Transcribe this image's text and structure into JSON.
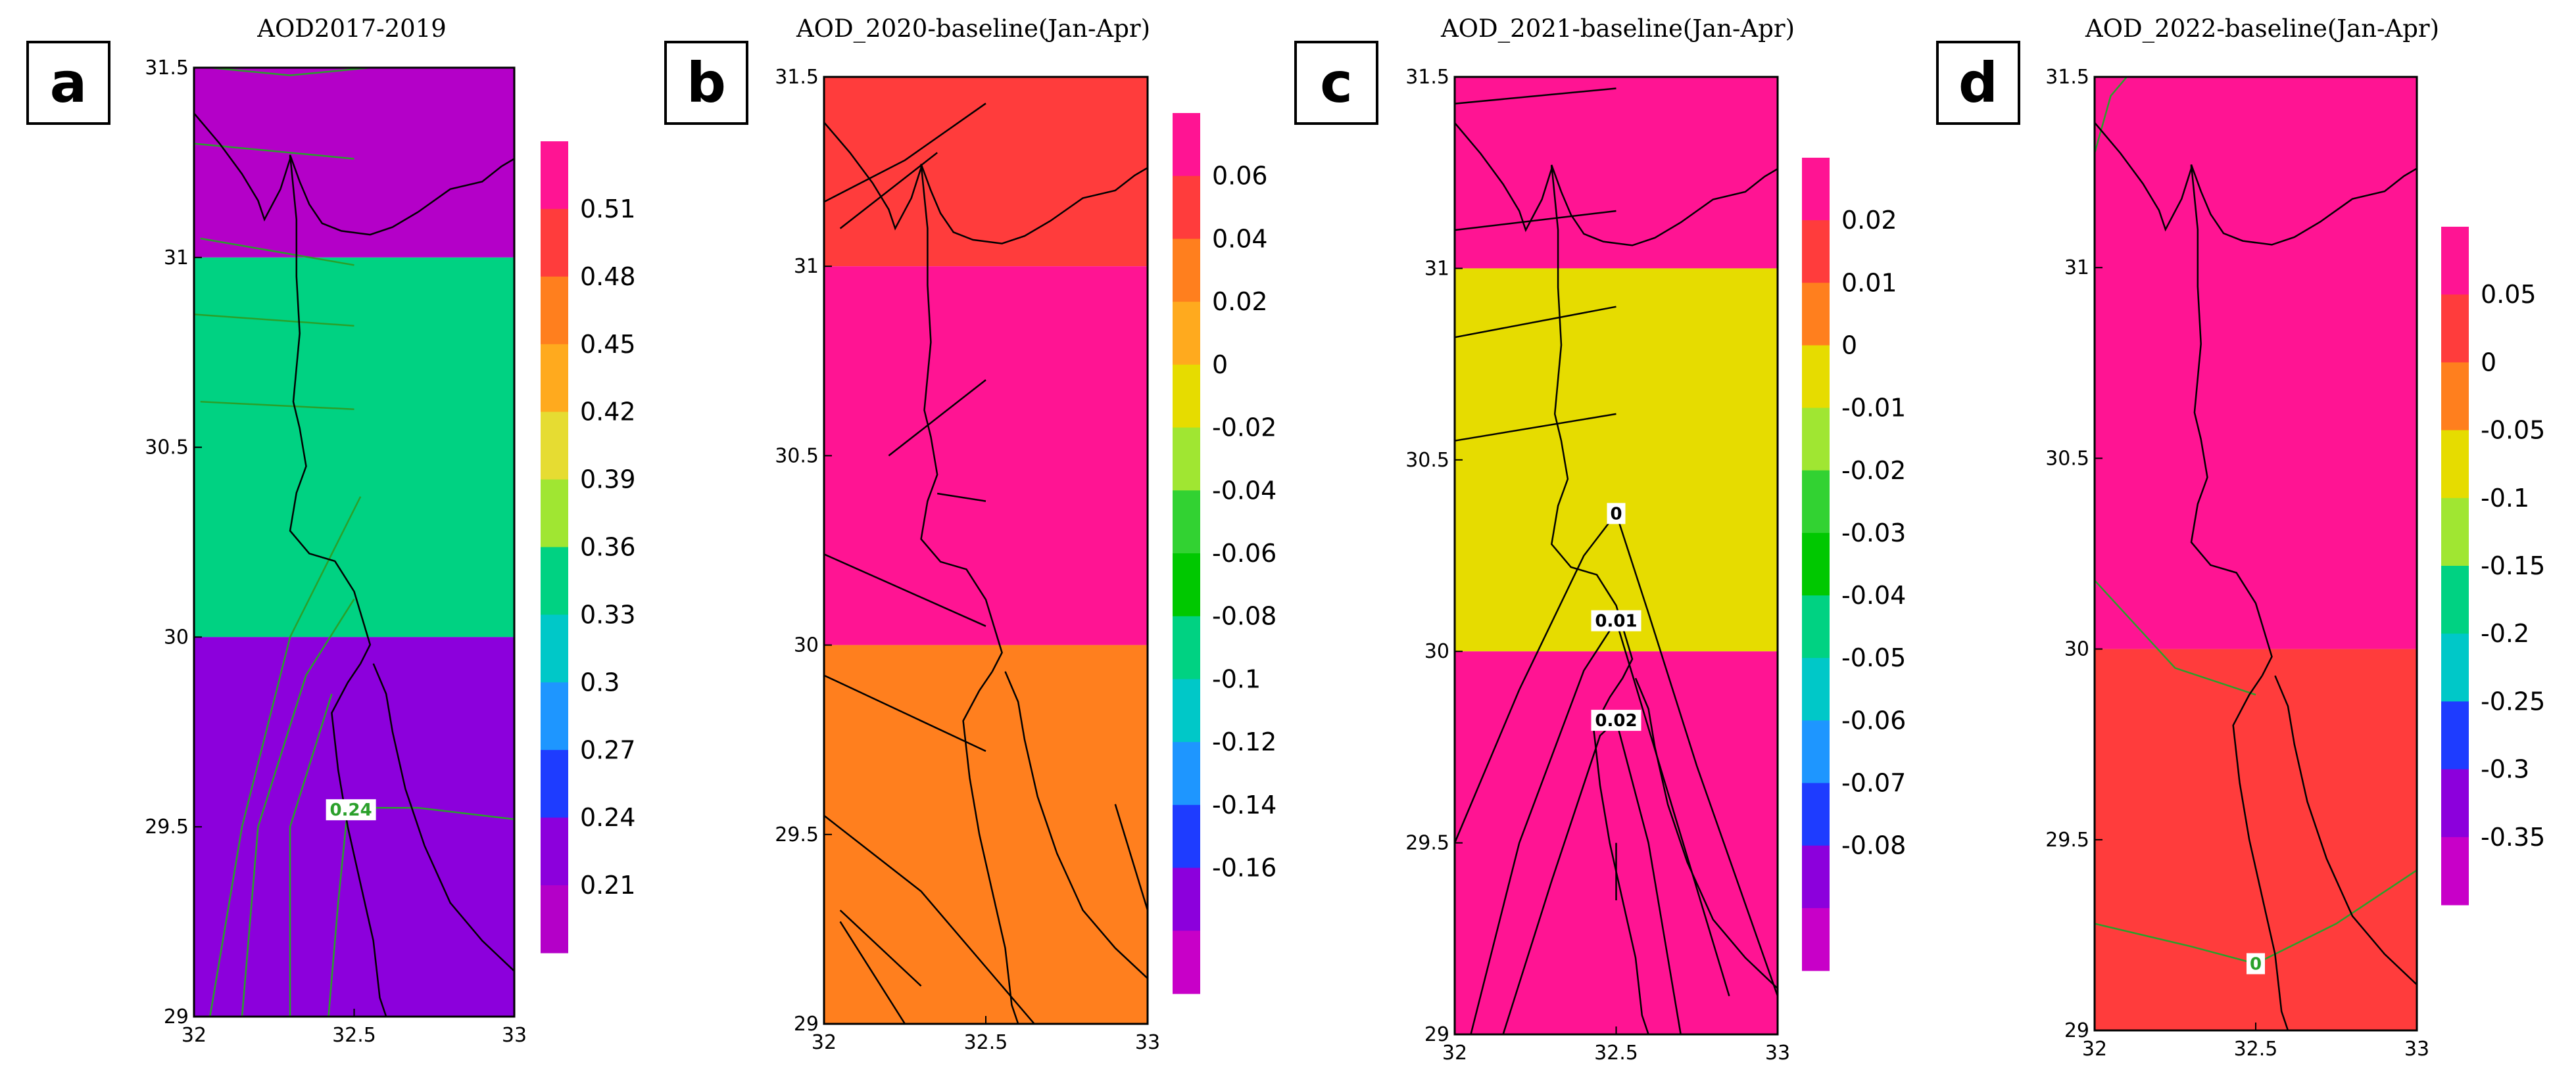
{
  "chart_data": [
    {
      "panel": "a",
      "type": "heatmap",
      "title": "AOD2017-2019",
      "xlim": [
        32,
        33
      ],
      "ylim": [
        29,
        31.5
      ],
      "x_ticks": [
        "32",
        "32.5",
        "33"
      ],
      "y_ticks": [
        "29",
        "29.5",
        "30",
        "30.5",
        "31",
        "31.5"
      ],
      "bands": [
        {
          "y0": 31,
          "y1": 31.5,
          "color": "#b400c8"
        },
        {
          "y0": 30,
          "y1": 31,
          "color": "#00d282"
        },
        {
          "y0": 29,
          "y1": 30,
          "color": "#8c00dc"
        }
      ],
      "colorbar": {
        "labels": [
          "0.51",
          "0.48",
          "0.45",
          "0.42",
          "0.39",
          "0.36",
          "0.33",
          "0.3",
          "0.27",
          "0.24",
          "0.21"
        ],
        "colors": [
          "#ff1493",
          "#ff3c3c",
          "#ff7f1e",
          "#ffaa1e",
          "#e6dc32",
          "#a0e632",
          "#00d282",
          "#00c8c8",
          "#1e96ff",
          "#1e3cff",
          "#8c00dc",
          "#b400c8"
        ]
      },
      "contour_color": "#2aa02a",
      "contour_labels": [
        {
          "text": "0.24",
          "x": 32.49,
          "y": 29.545,
          "color": "#2aa02a"
        }
      ]
    },
    {
      "panel": "b",
      "type": "heatmap",
      "title": "AOD_2020-baseline(Jan-Apr)",
      "xlim": [
        32,
        33
      ],
      "ylim": [
        29,
        31.5
      ],
      "x_ticks": [
        "32",
        "32.5",
        "33"
      ],
      "y_ticks": [
        "29",
        "29.5",
        "30",
        "30.5",
        "31",
        "31.5"
      ],
      "bands": [
        {
          "y0": 31,
          "y1": 31.5,
          "color": "#ff3c3c"
        },
        {
          "y0": 30,
          "y1": 31,
          "color": "#ff1493"
        },
        {
          "y0": 29,
          "y1": 30,
          "color": "#ff7f1e"
        }
      ],
      "colorbar": {
        "labels": [
          "0.06",
          "0.04",
          "0.02",
          "0",
          "-0.02",
          "-0.04",
          "-0.06",
          "-0.08",
          "-0.1",
          "-0.12",
          "-0.14",
          "-0.16"
        ],
        "colors": [
          "#ff1493",
          "#ff3c3c",
          "#ff7f1e",
          "#ffaa1e",
          "#e6dc00",
          "#a0e632",
          "#32d232",
          "#00c800",
          "#00d282",
          "#00c8c8",
          "#1e96ff",
          "#1e3cff",
          "#8c00dc",
          "#c800c8"
        ]
      },
      "contour_color": "#000000",
      "contour_labels": []
    },
    {
      "panel": "c",
      "type": "heatmap",
      "title": "AOD_2021-baseline(Jan-Apr)",
      "xlim": [
        32,
        33
      ],
      "ylim": [
        29,
        31.5
      ],
      "x_ticks": [
        "32",
        "32.5",
        "33"
      ],
      "y_ticks": [
        "29",
        "29.5",
        "30",
        "30.5",
        "31",
        "31.5"
      ],
      "bands": [
        {
          "y0": 31,
          "y1": 31.5,
          "color": "#ff1493"
        },
        {
          "y0": 30,
          "y1": 31,
          "color": "#e6dc00"
        },
        {
          "y0": 29,
          "y1": 30,
          "color": "#ff1493"
        }
      ],
      "colorbar": {
        "labels": [
          "0.02",
          "0.01",
          "0",
          "-0.01",
          "-0.02",
          "-0.03",
          "-0.04",
          "-0.05",
          "-0.06",
          "-0.07",
          "-0.08"
        ],
        "colors": [
          "#ff1493",
          "#ff3c3c",
          "#ff7f1e",
          "#e6dc00",
          "#a0e632",
          "#32d232",
          "#00c800",
          "#00d282",
          "#00c8c8",
          "#1e96ff",
          "#1e3cff",
          "#8c00dc",
          "#c800c8"
        ]
      },
      "contour_color": "#000000",
      "contour_labels": [
        {
          "text": "0",
          "x": 32.5,
          "y": 30.36,
          "color": "#000000"
        },
        {
          "text": "0.01",
          "x": 32.5,
          "y": 30.08,
          "color": "#000000"
        },
        {
          "text": "0.02",
          "x": 32.5,
          "y": 29.82,
          "color": "#000000"
        }
      ]
    },
    {
      "panel": "d",
      "type": "heatmap",
      "title": "AOD_2022-baseline(Jan-Apr)",
      "xlim": [
        32,
        33
      ],
      "ylim": [
        29,
        31.5
      ],
      "x_ticks": [
        "32",
        "32.5",
        "33"
      ],
      "y_ticks": [
        "29",
        "29.5",
        "30",
        "30.5",
        "31",
        "31.5"
      ],
      "bands": [
        {
          "y0": 30,
          "y1": 31.5,
          "color": "#ff1493"
        },
        {
          "y0": 29,
          "y1": 30,
          "color": "#ff3c3c"
        }
      ],
      "colorbar": {
        "labels": [
          "0.05",
          "0",
          "-0.05",
          "-0.1",
          "-0.15",
          "-0.2",
          "-0.25",
          "-0.3",
          "-0.35"
        ],
        "colors": [
          "#ff1493",
          "#ff3c3c",
          "#ff7f1e",
          "#e6dc00",
          "#a0e632",
          "#00d282",
          "#00c8c8",
          "#1e3cff",
          "#8c00dc",
          "#c800c8"
        ]
      },
      "contour_color": "#2aa02a",
      "contour_labels": [
        {
          "text": "0",
          "x": 32.5,
          "y": 29.175,
          "color": "#2aa02a"
        }
      ]
    }
  ]
}
